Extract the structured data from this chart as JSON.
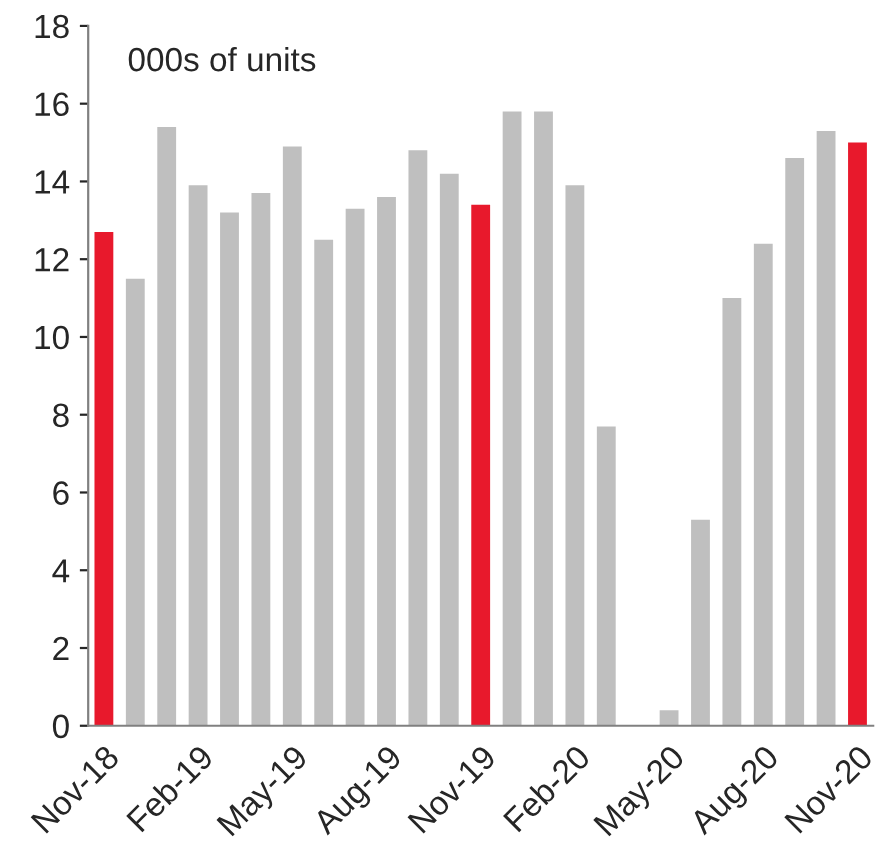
{
  "chart_data": {
    "type": "bar",
    "categories": [
      "Nov-18",
      null,
      null,
      "Feb-19",
      null,
      null,
      "May-19",
      null,
      null,
      "Aug-19",
      null,
      null,
      "Nov-19",
      null,
      null,
      "Feb-20",
      null,
      null,
      "May-20",
      null,
      null,
      "Aug-20",
      null,
      null,
      "Nov-20"
    ],
    "values": [
      12.7,
      11.5,
      15.4,
      13.9,
      13.2,
      13.7,
      14.9,
      12.5,
      13.3,
      13.6,
      14.8,
      14.2,
      13.4,
      15.8,
      15.8,
      13.9,
      7.7,
      0,
      0.4,
      5.3,
      11.0,
      12.4,
      14.6,
      15.3,
      15.0
    ],
    "colors": [
      "#e8192c",
      "#bfbfbf",
      "#bfbfbf",
      "#bfbfbf",
      "#bfbfbf",
      "#bfbfbf",
      "#bfbfbf",
      "#bfbfbf",
      "#bfbfbf",
      "#bfbfbf",
      "#bfbfbf",
      "#bfbfbf",
      "#e8192c",
      "#bfbfbf",
      "#bfbfbf",
      "#bfbfbf",
      "#bfbfbf",
      "#bfbfbf",
      "#bfbfbf",
      "#bfbfbf",
      "#bfbfbf",
      "#bfbfbf",
      "#bfbfbf",
      "#bfbfbf",
      "#e8192c"
    ],
    "ylim": [
      0,
      18
    ],
    "yticks": [
      0,
      2,
      4,
      6,
      8,
      10,
      12,
      14,
      16,
      18
    ],
    "annotations": [
      "000s of units"
    ],
    "grid": false,
    "legend": false
  }
}
